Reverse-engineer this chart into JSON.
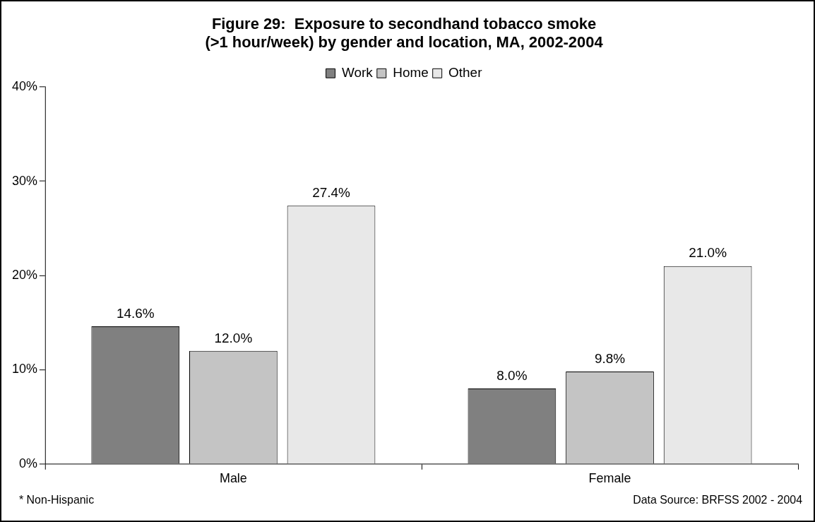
{
  "chart_data": {
    "type": "bar",
    "title": "Figure 29:  Exposure to secondhand tobacco smoke\n(>1 hour/week) by gender and location, MA, 2002-2004",
    "categories": [
      "Male",
      "Female"
    ],
    "series": [
      {
        "name": "Work",
        "color": "#808080",
        "values": [
          14.6,
          8.0
        ],
        "value_labels": [
          "14.6%",
          "8.0%"
        ]
      },
      {
        "name": "Home",
        "color": "#c4c4c4",
        "values": [
          12.0,
          9.8
        ],
        "value_labels": [
          "12.0%",
          "9.8%"
        ]
      },
      {
        "name": "Other",
        "color": "#e8e8e8",
        "values": [
          27.4,
          21.0
        ],
        "value_labels": [
          "27.4%",
          "21.0%"
        ]
      }
    ],
    "ylim": [
      0,
      40
    ],
    "yticks": [
      {
        "value": 0,
        "label": "0%"
      },
      {
        "value": 10,
        "label": "10%"
      },
      {
        "value": 20,
        "label": "20%"
      },
      {
        "value": 30,
        "label": "30%"
      },
      {
        "value": 40,
        "label": "40%"
      }
    ],
    "grid": false,
    "legend": "top",
    "annotations": [
      "* Non-Hispanic",
      "Data Source: BRFSS 2002 - 2004"
    ]
  }
}
